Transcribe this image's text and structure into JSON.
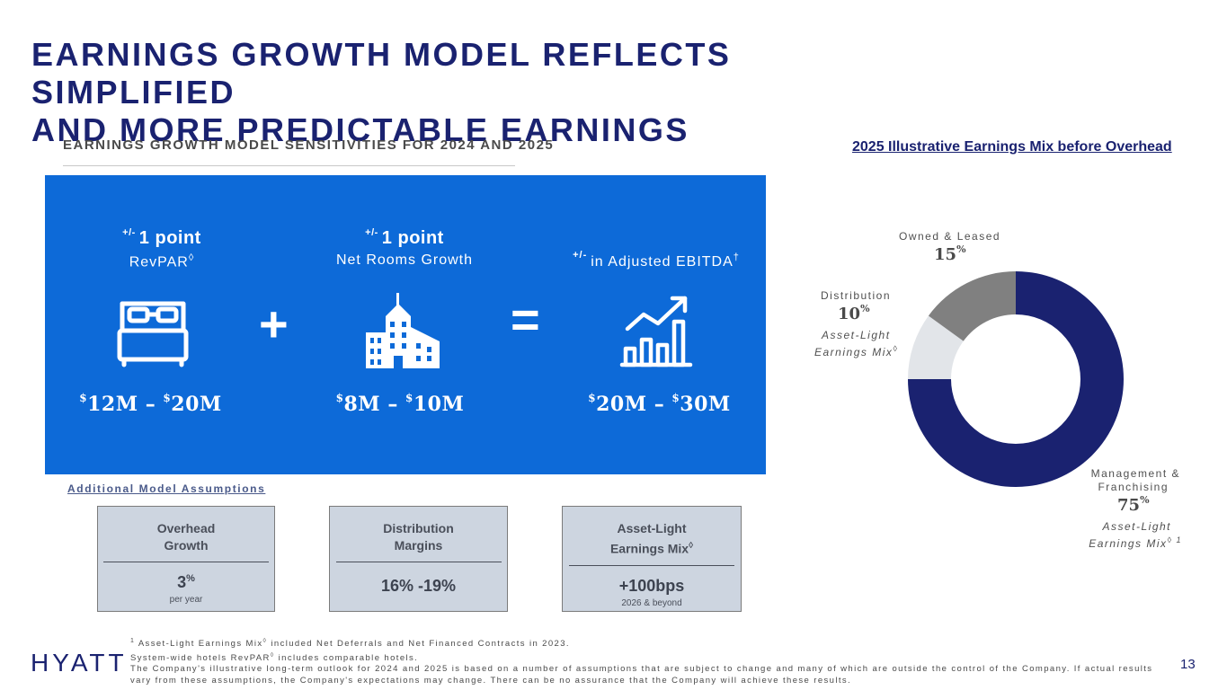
{
  "title": {
    "line1": "EARNINGS GROWTH MODEL REFLECTS SIMPLIFIED",
    "line2": "AND MORE PREDICTABLE EARNINGS"
  },
  "subtitle": "EARNINGS GROWTH MODEL SENSITIVITIES FOR 2024 AND 2025",
  "sensitivities": {
    "col1": {
      "prefix": "+/-",
      "big": "1 point",
      "label": "RevPAR",
      "mark": "◊",
      "value_a": "12M",
      "value_b": "20M",
      "icon": "bed-icon"
    },
    "col2": {
      "prefix": "+/-",
      "big": "1 point",
      "label": "Net Rooms Growth",
      "value_a": "8M",
      "value_b": "10M",
      "icon": "buildings-icon"
    },
    "col3": {
      "prefix": "+/-",
      "label": "in Adjusted EBITDA",
      "mark": "†",
      "value_a": "20M",
      "value_b": "30M",
      "icon": "growth-chart-icon"
    },
    "plus": "+",
    "equals": "=",
    "currency": "$",
    "dash": "–"
  },
  "assumptions": {
    "title": "Additional Model Assumptions",
    "cards": [
      {
        "title_1": "Overhead",
        "title_2": "Growth",
        "value": "3",
        "value_sup": "%",
        "note": "per year"
      },
      {
        "title_1": "Distribution",
        "title_2": "Margins",
        "value": "16% -19%",
        "note": ""
      },
      {
        "title_1": "Asset-Light",
        "title_2": "Earnings Mix",
        "title_mark": "◊",
        "value": "+100bps",
        "note": "2026 & beyond"
      }
    ]
  },
  "chart_data": {
    "type": "pie",
    "title": "2025 Illustrative Earnings Mix before Overhead",
    "donut": true,
    "slices": [
      {
        "label": "Management & Franchising",
        "value": 75,
        "color": "#1a2270"
      },
      {
        "label": "Distribution",
        "value": 10,
        "color": "#e2e5e9"
      },
      {
        "label": "Owned & Leased",
        "value": 15,
        "color": "#808080"
      }
    ],
    "annotations": [
      {
        "text": "Asset-Light Earnings Mix◊",
        "applies_to": "Distribution"
      },
      {
        "text": "Asset-Light Earnings Mix◊ 1",
        "applies_to": "Management & Franchising"
      }
    ]
  },
  "pie_labels": {
    "owned_label": "Owned & Leased",
    "owned_pct": "15",
    "dist_label": "Distribution",
    "dist_pct": "10",
    "dist_note_1": "Asset-Light",
    "dist_note_2": "Earnings Mix",
    "dist_note_mark": "◊",
    "mf_label_1": "Management &",
    "mf_label_2": "Franchising",
    "mf_pct": "75",
    "mf_note_1": "Asset-Light",
    "mf_note_2": "Earnings Mix",
    "mf_note_mark": "◊ 1",
    "pct_sign": "%"
  },
  "footnotes": {
    "f1_num": "1",
    "f1_a": "Asset-Light Earnings Mix",
    "f1_mark": "◊",
    "f1_b": "included Net Deferrals and Net Financed Contracts in 2023.",
    "f2_a": "System-wide hotels RevPAR",
    "f2_mark": "◊",
    "f2_b": "includes comparable hotels.",
    "f3": "The Company's illustrative long-term outlook for 2024 and 2025 is based on a number of assumptions that are subject to change and many of which are outside the control of the Company. If actual results vary from these assumptions, the Company's expectations may change. There can be no assurance that the Company will achieve these results."
  },
  "logo": "HYATT",
  "page_number": "13"
}
